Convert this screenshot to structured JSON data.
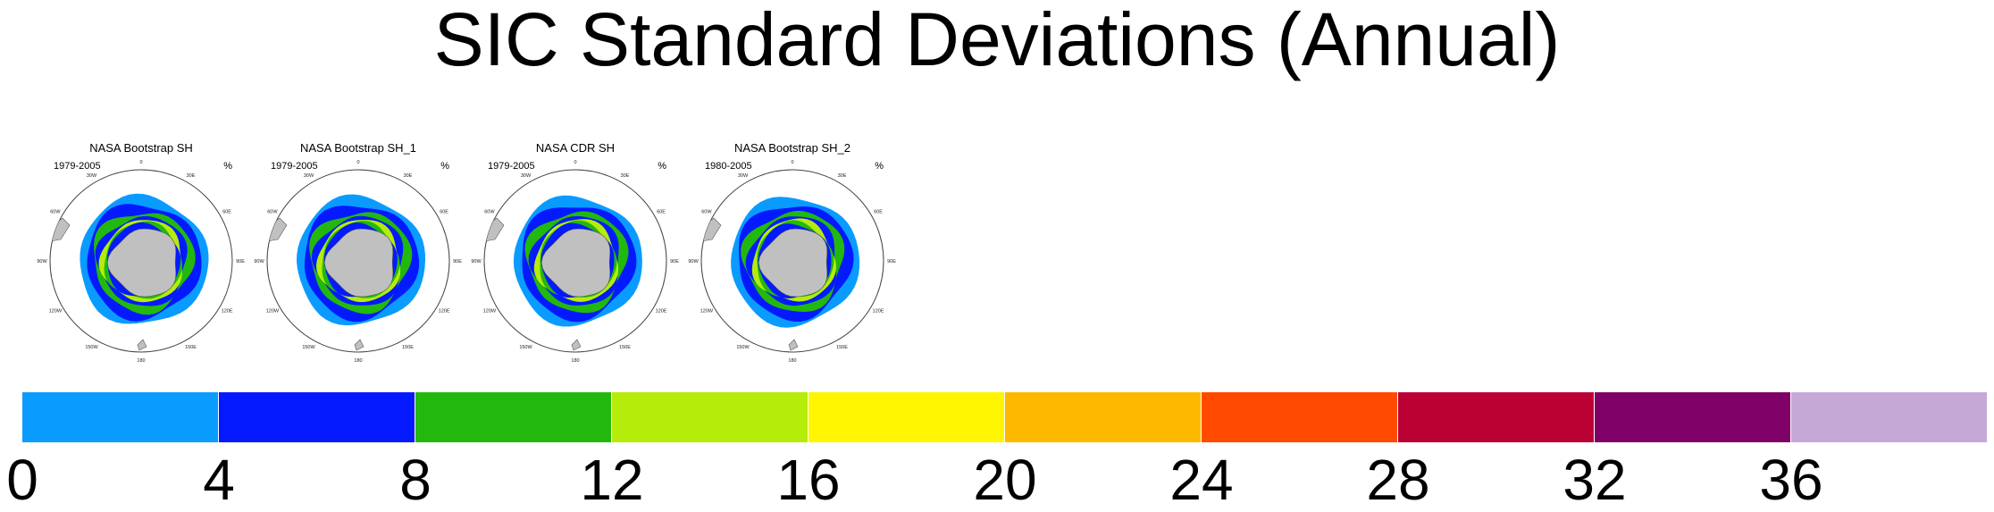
{
  "title": "SIC Standard Deviations (Annual)",
  "panels": [
    {
      "title": "NASA Bootstrap SH",
      "period": "1979-2005",
      "units": "%"
    },
    {
      "title": "NASA Bootstrap SH_1",
      "period": "1979-2005",
      "units": "%"
    },
    {
      "title": "NASA CDR SH",
      "period": "1979-2005",
      "units": "%"
    },
    {
      "title": "NASA Bootstrap SH_2",
      "period": "1980-2005",
      "units": "%"
    }
  ],
  "map_labels": {
    "n0": "0",
    "n30e": "30E",
    "n60e": "60E",
    "n90e": "90E",
    "n120e": "120E",
    "n150e": "150E",
    "n180": "180",
    "n150w": "150W",
    "n120w": "120W",
    "n90w": "90W",
    "n60w": "60W",
    "n30w": "30W"
  },
  "colorbar": {
    "colors": [
      "#0a9bff",
      "#0519ff",
      "#23b80e",
      "#b6ec0a",
      "#fff500",
      "#ffb800",
      "#ff4a00",
      "#bb0034",
      "#7f0067",
      "#c6a8d6"
    ],
    "labels": [
      "0",
      "4",
      "8",
      "12",
      "16",
      "20",
      "24",
      "28",
      "32",
      "36"
    ]
  },
  "map_colors": {
    "land": "#c0c0c0",
    "ocean": "#ffffff"
  }
}
